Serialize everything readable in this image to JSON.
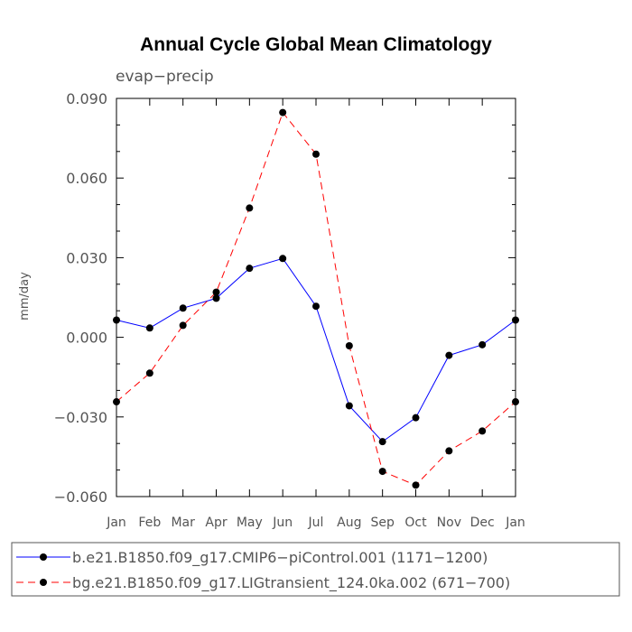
{
  "chart_data": {
    "type": "line",
    "title": "Annual Cycle Global Mean Climatology",
    "subtitle": "evap−precip",
    "xlabel": "",
    "ylabel": "mm/day",
    "categories": [
      "Jan",
      "Feb",
      "Mar",
      "Apr",
      "May",
      "Jun",
      "Jul",
      "Aug",
      "Sep",
      "Oct",
      "Nov",
      "Dec",
      "Jan"
    ],
    "ylim": [
      -0.06,
      0.09
    ],
    "yticks": [
      -0.06,
      -0.03,
      0.0,
      0.03,
      0.06,
      0.09
    ],
    "ytick_labels": [
      "−0.060",
      "−0.030",
      "0.000",
      "0.030",
      "0.060",
      "0.090"
    ],
    "series": [
      {
        "name": "b.e21.B1850.f09_g17.CMIP6−piControl.001 (1171−1200)",
        "color": "#0000ff",
        "style": "solid",
        "values": [
          0.0065,
          0.0035,
          0.011,
          0.0147,
          0.026,
          0.0297,
          0.0117,
          -0.0258,
          -0.0393,
          -0.0303,
          -0.0068,
          -0.0028,
          0.0065
        ]
      },
      {
        "name": "bg.e21.B1850.f09_g17.LIGtransient_124.0ka.002 (671−700)",
        "color": "#ff0000",
        "style": "dashed",
        "values": [
          -0.0243,
          -0.0135,
          0.0045,
          0.017,
          0.0487,
          0.0847,
          0.069,
          -0.0032,
          -0.0505,
          -0.0557,
          -0.0428,
          -0.0353,
          -0.0243
        ]
      }
    ]
  }
}
